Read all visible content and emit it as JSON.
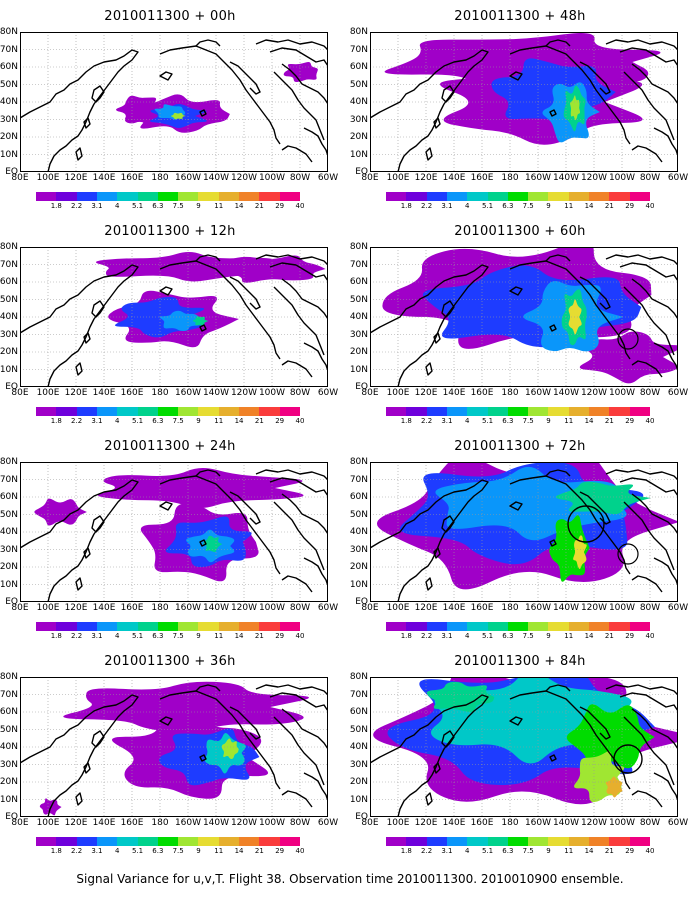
{
  "panels": [
    {
      "title": "2010011300 + 00h",
      "col": 0,
      "row": 0,
      "level": 0
    },
    {
      "title": "2010011300 + 12h",
      "col": 0,
      "row": 1,
      "level": 1
    },
    {
      "title": "2010011300 + 24h",
      "col": 0,
      "row": 2,
      "level": 2
    },
    {
      "title": "2010011300 + 36h",
      "col": 0,
      "row": 3,
      "level": 3
    },
    {
      "title": "2010011300 + 48h",
      "col": 1,
      "row": 0,
      "level": 4
    },
    {
      "title": "2010011300 + 60h",
      "col": 1,
      "row": 1,
      "level": 5
    },
    {
      "title": "2010011300 + 72h",
      "col": 1,
      "row": 2,
      "level": 6
    },
    {
      "title": "2010011300 + 84h",
      "col": 1,
      "row": 3,
      "level": 7
    }
  ],
  "lat_labels": [
    "80N",
    "70N",
    "60N",
    "50N",
    "40N",
    "30N",
    "20N",
    "10N",
    "EQ"
  ],
  "lon_labels": [
    "80E",
    "100E",
    "120E",
    "140E",
    "160E",
    "180",
    "160W",
    "140W",
    "120W",
    "100W",
    "80W",
    "60W"
  ],
  "colorbar": {
    "labels": [
      "1.8",
      "2.2",
      "3.1",
      "4",
      "5.1",
      "6.3",
      "7.5",
      "9",
      "11",
      "14",
      "21",
      "29",
      "40"
    ],
    "colors": [
      "#a000c8",
      "#6e00dc",
      "#1e3cff",
      "#0a96fa",
      "#00c8c8",
      "#00d28c",
      "#00dc00",
      "#a0e632",
      "#e6dc32",
      "#e6af2d",
      "#f08228",
      "#fa3c3c",
      "#f00082"
    ]
  },
  "caption": "Signal Variance for u,v,T. Flight 38. Observation time 2010011300. 2010010900 ensemble."
}
